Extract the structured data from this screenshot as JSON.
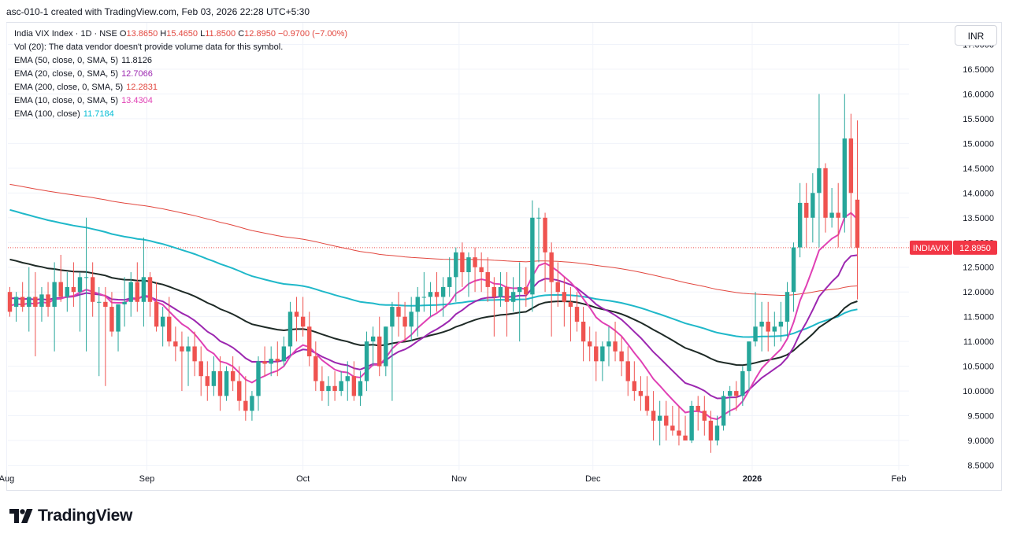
{
  "header": {
    "title": "asc-010-1 created with TradingView.com, Feb 03, 2026 22:28 UTC+5:30"
  },
  "legend": {
    "instrument": "India VIX Index · 1D · NSE",
    "ohlc": {
      "o_label": "O",
      "o": "13.8650",
      "h_label": "H",
      "h": "15.4650",
      "l_label": "L",
      "l": "11.8500",
      "c_label": "C",
      "c": "12.8950",
      "change": "−0.9700 (−7.00%)"
    },
    "volume_note": "Vol (20): The data vendor doesn't provide volume data for this symbol.",
    "indicators": [
      {
        "label": "EMA (50, close, 0, SMA, 5)",
        "value": "11.8126",
        "color": "#131722"
      },
      {
        "label": "EMA (20, close, 0, SMA, 5)",
        "value": "12.7066",
        "color": "#9c27b0"
      },
      {
        "label": "EMA (200, close, 0, SMA, 5)",
        "value": "12.2831",
        "color": "#e2473f"
      },
      {
        "label": "EMA (10, close, 0, SMA, 5)",
        "value": "13.4304",
        "color": "#e040b4"
      },
      {
        "label": "EMA (100, close)",
        "value": "11.7184",
        "color": "#00bcd4"
      }
    ]
  },
  "currency": "INR",
  "brand": "TradingView",
  "colors": {
    "up": "#26a69a",
    "down": "#ef5350",
    "ema50": "#1e2a26",
    "ema20": "#9c27b0",
    "ema200": "#e2473f",
    "ema10": "#e040b4",
    "ema100": "#1fb8c9",
    "badge": "#f23645"
  },
  "chart_data": {
    "type": "candlestick",
    "symbol_badge": "INDIAVIX",
    "last_price": "12.8950",
    "ylim": [
      8.5,
      17.0
    ],
    "y_ticks": [
      "8.5000",
      "9.0000",
      "9.5000",
      "10.0000",
      "10.5000",
      "11.0000",
      "11.5000",
      "12.0000",
      "12.5000",
      "13.0000",
      "13.5000",
      "14.0000",
      "14.5000",
      "15.0000",
      "15.5000",
      "16.0000",
      "16.5000",
      "17.0000"
    ],
    "x_labels": [
      {
        "label": "Aug",
        "bar": -0.5
      },
      {
        "label": "Sep",
        "bar": 21.5
      },
      {
        "label": "Oct",
        "bar": 46
      },
      {
        "label": "Nov",
        "bar": 70.5
      },
      {
        "label": "Dec",
        "bar": 91.5
      },
      {
        "label": "2026",
        "bar": 116.5
      },
      {
        "label": "Feb",
        "bar": 139.5
      }
    ],
    "candles": [
      [
        12.0,
        12.1,
        11.5,
        11.6
      ],
      [
        11.7,
        12.0,
        11.4,
        11.9
      ],
      [
        11.9,
        12.2,
        11.6,
        11.7
      ],
      [
        11.7,
        12.5,
        11.2,
        11.9
      ],
      [
        11.9,
        12.4,
        10.7,
        11.7
      ],
      [
        11.7,
        12.1,
        11.4,
        11.95
      ],
      [
        11.95,
        12.2,
        11.5,
        11.7
      ],
      [
        11.7,
        12.6,
        10.8,
        12.2
      ],
      [
        12.2,
        12.75,
        11.8,
        11.9
      ],
      [
        11.9,
        12.4,
        11.6,
        12.1
      ],
      [
        12.1,
        12.6,
        11.7,
        12.0
      ],
      [
        12.0,
        12.4,
        11.2,
        12.3
      ],
      [
        12.3,
        13.5,
        10.8,
        12.3
      ],
      [
        12.3,
        12.6,
        11.5,
        11.8
      ],
      [
        11.8,
        12.1,
        10.3,
        11.8
      ],
      [
        11.8,
        12.1,
        10.1,
        11.7
      ],
      [
        11.7,
        12.0,
        11.1,
        11.2
      ],
      [
        11.2,
        11.7,
        10.8,
        11.75
      ],
      [
        11.75,
        12.3,
        11.3,
        11.8
      ],
      [
        11.8,
        12.4,
        11.5,
        12.2
      ],
      [
        12.2,
        12.6,
        11.6,
        11.8
      ],
      [
        11.8,
        13.1,
        11.3,
        12.3
      ],
      [
        12.3,
        12.4,
        11.5,
        11.8
      ],
      [
        11.8,
        12.2,
        11.2,
        11.3
      ],
      [
        11.3,
        11.7,
        10.9,
        11.5
      ],
      [
        11.5,
        11.9,
        10.9,
        11.0
      ],
      [
        11.0,
        11.3,
        10.6,
        10.9
      ],
      [
        10.9,
        11.2,
        10.0,
        10.8
      ],
      [
        10.8,
        11.1,
        10.1,
        10.9
      ],
      [
        10.9,
        11.2,
        10.3,
        10.6
      ],
      [
        10.6,
        10.9,
        9.9,
        10.3
      ],
      [
        10.3,
        10.6,
        9.8,
        10.1
      ],
      [
        10.1,
        10.7,
        9.9,
        10.4
      ],
      [
        10.4,
        10.7,
        9.6,
        9.9
      ],
      [
        9.9,
        10.5,
        9.8,
        10.4
      ],
      [
        10.4,
        10.7,
        10.0,
        10.2
      ],
      [
        10.2,
        10.5,
        9.6,
        9.8
      ],
      [
        9.8,
        10.3,
        9.4,
        9.6
      ],
      [
        9.6,
        10.0,
        9.4,
        9.9
      ],
      [
        9.9,
        10.7,
        9.6,
        10.6
      ],
      [
        10.6,
        10.9,
        10.3,
        10.55
      ],
      [
        10.55,
        10.9,
        10.3,
        10.65
      ],
      [
        10.65,
        11.0,
        10.3,
        10.6
      ],
      [
        10.6,
        11.1,
        10.5,
        10.9
      ],
      [
        10.9,
        11.8,
        10.7,
        11.6
      ],
      [
        11.6,
        11.9,
        11.0,
        11.5
      ],
      [
        11.5,
        11.9,
        11.1,
        11.3
      ],
      [
        11.3,
        11.6,
        10.5,
        10.7
      ],
      [
        10.7,
        11.0,
        10.0,
        10.2
      ],
      [
        10.2,
        10.5,
        9.8,
        10.0
      ],
      [
        10.0,
        10.3,
        9.7,
        10.1
      ],
      [
        10.1,
        10.4,
        9.8,
        10.0
      ],
      [
        10.0,
        10.4,
        9.9,
        10.2
      ],
      [
        10.2,
        10.6,
        9.8,
        10.3
      ],
      [
        10.3,
        10.6,
        9.8,
        9.9
      ],
      [
        9.9,
        10.4,
        9.7,
        10.2
      ],
      [
        10.2,
        11.2,
        10.0,
        11.0
      ],
      [
        11.0,
        11.3,
        10.5,
        11.1
      ],
      [
        11.1,
        11.5,
        10.3,
        10.5
      ],
      [
        10.5,
        11.3,
        10.3,
        11.3
      ],
      [
        11.3,
        11.8,
        9.8,
        11.7
      ],
      [
        11.7,
        12.0,
        11.1,
        11.5
      ],
      [
        11.5,
        11.8,
        11.0,
        11.3
      ],
      [
        11.3,
        11.9,
        11.0,
        11.6
      ],
      [
        11.6,
        12.1,
        11.1,
        11.9
      ],
      [
        11.9,
        12.4,
        11.6,
        11.9
      ],
      [
        11.9,
        12.2,
        11.5,
        12.0
      ],
      [
        12.0,
        12.4,
        11.6,
        11.9
      ],
      [
        11.9,
        12.3,
        11.5,
        12.1
      ],
      [
        12.1,
        12.7,
        11.9,
        12.3
      ],
      [
        12.3,
        12.9,
        11.8,
        12.8
      ],
      [
        12.8,
        13.0,
        12.1,
        12.4
      ],
      [
        12.4,
        12.8,
        11.9,
        12.7
      ],
      [
        12.7,
        12.9,
        12.0,
        12.5
      ],
      [
        12.5,
        12.8,
        12.0,
        12.4
      ],
      [
        12.4,
        12.7,
        11.8,
        12.1
      ],
      [
        12.1,
        12.3,
        11.1,
        11.9
      ],
      [
        11.9,
        12.4,
        11.7,
        12.1
      ],
      [
        12.1,
        12.4,
        11.1,
        11.8
      ],
      [
        11.8,
        12.3,
        11.6,
        12.0
      ],
      [
        12.0,
        12.6,
        11.0,
        12.1
      ],
      [
        12.1,
        12.5,
        11.7,
        11.95
      ],
      [
        11.95,
        13.85,
        11.6,
        13.5
      ],
      [
        13.5,
        13.7,
        12.6,
        13.5
      ],
      [
        13.5,
        13.6,
        12.0,
        12.8
      ],
      [
        12.8,
        13.0,
        11.1,
        12.2
      ],
      [
        12.2,
        12.6,
        11.7,
        12.0
      ],
      [
        12.0,
        12.3,
        11.3,
        11.8
      ],
      [
        11.8,
        12.1,
        11.0,
        11.7
      ],
      [
        11.7,
        12.0,
        11.2,
        11.4
      ],
      [
        11.4,
        11.7,
        10.6,
        11.0
      ],
      [
        11.0,
        11.3,
        10.6,
        10.9
      ],
      [
        10.9,
        11.2,
        10.2,
        10.6
      ],
      [
        10.6,
        11.0,
        10.2,
        10.9
      ],
      [
        10.9,
        11.3,
        10.5,
        11.0
      ],
      [
        11.0,
        11.4,
        10.6,
        10.8
      ],
      [
        10.8,
        11.1,
        10.3,
        10.6
      ],
      [
        10.6,
        10.9,
        9.9,
        10.2
      ],
      [
        10.2,
        10.6,
        9.8,
        10.0
      ],
      [
        10.0,
        10.3,
        9.6,
        9.9
      ],
      [
        9.9,
        10.3,
        9.5,
        9.6
      ],
      [
        9.6,
        10.0,
        9.0,
        9.4
      ],
      [
        9.4,
        9.8,
        8.9,
        9.5
      ],
      [
        9.5,
        9.8,
        9.0,
        9.3
      ],
      [
        9.3,
        9.7,
        9.1,
        9.2
      ],
      [
        9.2,
        9.7,
        8.9,
        9.1
      ],
      [
        9.1,
        9.5,
        9.0,
        9.0
      ],
      [
        9.0,
        9.8,
        8.95,
        9.7
      ],
      [
        9.7,
        9.9,
        9.2,
        9.6
      ],
      [
        9.6,
        9.9,
        9.1,
        9.4
      ],
      [
        9.4,
        9.6,
        8.75,
        9.0
      ],
      [
        9.0,
        9.5,
        8.9,
        9.3
      ],
      [
        9.3,
        10.0,
        9.2,
        9.9
      ],
      [
        9.9,
        10.1,
        9.5,
        10.0
      ],
      [
        10.0,
        10.2,
        9.6,
        9.9
      ],
      [
        9.9,
        10.5,
        9.7,
        10.4
      ],
      [
        10.4,
        11.0,
        10.0,
        11.0
      ],
      [
        11.0,
        12.0,
        10.9,
        11.3
      ],
      [
        11.3,
        11.8,
        10.8,
        11.4
      ],
      [
        11.4,
        11.8,
        10.8,
        11.2
      ],
      [
        11.2,
        11.6,
        10.9,
        11.3
      ],
      [
        11.3,
        11.8,
        11.0,
        11.4
      ],
      [
        11.4,
        12.2,
        11.1,
        12.0
      ],
      [
        12.0,
        13.0,
        11.6,
        12.9
      ],
      [
        12.9,
        14.2,
        12.7,
        13.8
      ],
      [
        13.8,
        14.2,
        12.9,
        13.5
      ],
      [
        13.5,
        14.4,
        13.0,
        14.0
      ],
      [
        14.0,
        16.0,
        12.9,
        14.5
      ],
      [
        14.5,
        14.6,
        13.2,
        13.5
      ],
      [
        13.5,
        14.1,
        13.3,
        13.6
      ],
      [
        13.6,
        14.2,
        12.9,
        13.5
      ],
      [
        13.5,
        16.0,
        13.2,
        15.1
      ],
      [
        15.1,
        15.6,
        12.9,
        14.0
      ],
      [
        13.865,
        15.465,
        11.85,
        12.895
      ]
    ]
  }
}
